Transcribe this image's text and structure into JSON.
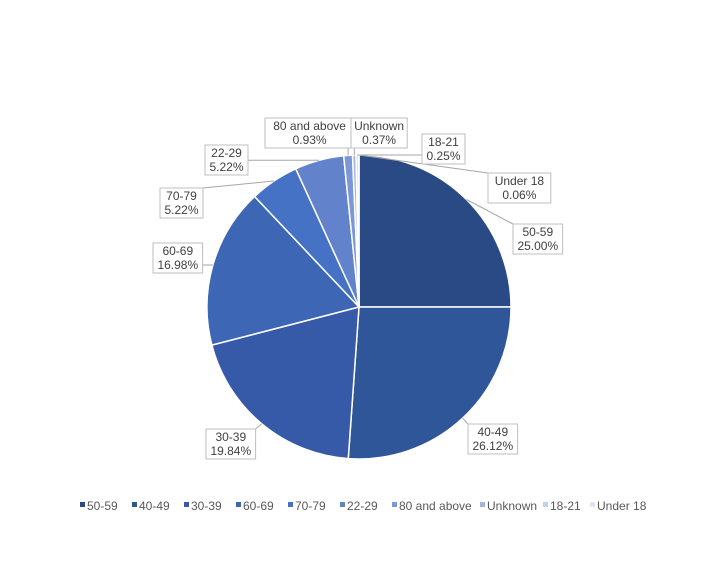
{
  "chart_data": {
    "type": "pie",
    "categories": [
      "50-59",
      "40-49",
      "30-39",
      "60-69",
      "70-79",
      "22-29",
      "80 and above",
      "Unknown",
      "18-21",
      "Under 18"
    ],
    "values": [
      25.0,
      26.12,
      19.84,
      16.98,
      5.22,
      5.22,
      0.93,
      0.37,
      0.25,
      0.06
    ],
    "value_labels": [
      "25.00%",
      "26.12%",
      "19.84%",
      "16.98%",
      "5.22%",
      "5.22%",
      "0.93%",
      "0.37%",
      "0.25%",
      "0.06%"
    ],
    "colors": [
      "#2a4a86",
      "#30569a",
      "#3659a8",
      "#3d66b4",
      "#4572c4",
      "#6283cc",
      "#7d97d6",
      "#a4b5e0",
      "#c3cfec",
      "#dfe5f4"
    ],
    "legend_position": "bottom",
    "start_angle": "12 o'clock, clockwise"
  }
}
